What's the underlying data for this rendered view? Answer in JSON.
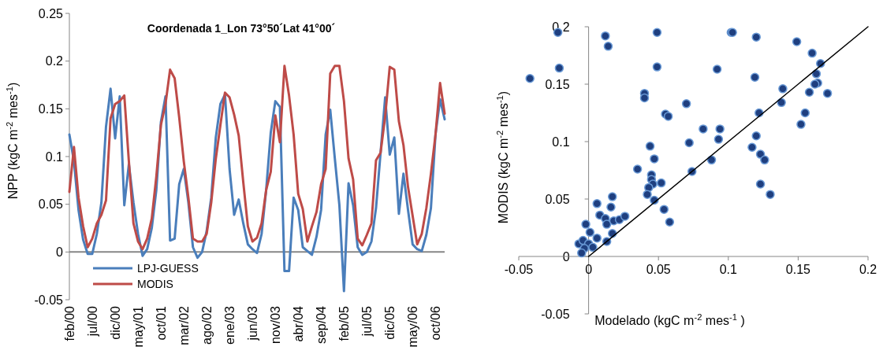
{
  "chart_data": [
    {
      "type": "line",
      "title": "Coordenada 1_Lon 73°50´Lat 41°00´",
      "ylabel": "NPP (kgC m$^{-2}$ mes$^{-1}$)",
      "categories": [
        "feb/00",
        null,
        null,
        null,
        null,
        "jul/00",
        null,
        null,
        null,
        null,
        "dic/00",
        null,
        null,
        null,
        null,
        "may/01",
        null,
        null,
        null,
        null,
        "oct/01",
        null,
        null,
        null,
        null,
        "mar/02",
        null,
        null,
        null,
        null,
        "ago/02",
        null,
        null,
        null,
        null,
        "ene/03",
        null,
        null,
        null,
        null,
        "jun/03",
        null,
        null,
        null,
        null,
        "nov/03",
        null,
        null,
        null,
        null,
        "abr/04",
        null,
        null,
        null,
        null,
        "sep/04",
        null,
        null,
        null,
        null,
        "feb/05",
        null,
        null,
        null,
        null,
        "jul/05",
        null,
        null,
        null,
        null,
        "dic/05",
        null,
        null,
        null,
        null,
        "may/06",
        null,
        null,
        null,
        null,
        "oct/06",
        null,
        null
      ],
      "series": [
        {
          "name": "LPJ-GUESS",
          "color": "#4a7ebb",
          "values": [
            0.123,
            0.095,
            0.044,
            0.013,
            -0.002,
            -0.002,
            0.019,
            0.052,
            0.131,
            0.171,
            0.119,
            0.163,
            0.049,
            0.092,
            0.052,
            0.019,
            -0.004,
            0.003,
            0.025,
            0.065,
            0.136,
            0.163,
            0.012,
            0.014,
            0.071,
            0.087,
            0.052,
            0.005,
            -0.006,
            0,
            0.022,
            0.057,
            0.12,
            0.155,
            0.165,
            0.087,
            0.039,
            0.055,
            0.03,
            0.008,
            0.003,
            -0.001,
            0.019,
            0.065,
            0.125,
            0.158,
            0.152,
            -0.02,
            -0.02,
            0.057,
            0.044,
            0.005,
            0.001,
            -0.003,
            0.016,
            0.044,
            0.123,
            0.149,
            0.098,
            0.049,
            -0.041,
            0.072,
            0.049,
            0.005,
            -0.003,
            0,
            0.011,
            0.046,
            0.104,
            0.162,
            0.102,
            0.12,
            0.04,
            0.082,
            0.044,
            0.008,
            0.003,
            0.001,
            0.018,
            0.046,
            0.123,
            0.16,
            0.139
          ]
        },
        {
          "name": "MODIS",
          "color": "#be4b48",
          "values": [
            0.063,
            0.11,
            0.057,
            0.027,
            0.005,
            0.014,
            0.03,
            0.039,
            0.054,
            0.14,
            0.155,
            0.158,
            0.164,
            0.095,
            0.03,
            0.011,
            0.003,
            0.014,
            0.035,
            0.079,
            0.133,
            0.155,
            0.191,
            0.182,
            0.141,
            0.095,
            0.057,
            0.014,
            0.011,
            0.011,
            0.019,
            0.052,
            0.098,
            0.133,
            0.167,
            0.162,
            0.144,
            0.122,
            0.073,
            0.027,
            0.011,
            0.015,
            0.03,
            0.065,
            0.084,
            0.143,
            0.115,
            0.195,
            0.164,
            0.123,
            0.061,
            0.045,
            0.011,
            0.027,
            0.042,
            0.071,
            0.087,
            0.187,
            0.195,
            0.195,
            0.158,
            0.098,
            0.076,
            0.014,
            0.007,
            0.018,
            0.03,
            0.096,
            0.104,
            0.142,
            0.194,
            0.191,
            0.137,
            0.112,
            0.068,
            0.038,
            0.008,
            0.019,
            0.046,
            0.082,
            0.123,
            0.177,
            0.145
          ]
        }
      ],
      "ylim": [
        -0.05,
        0.25
      ],
      "yticks": [
        -0.05,
        0,
        0.05,
        0.1,
        0.15,
        0.2,
        0.25
      ],
      "legend": "bottom left",
      "line_style": "solid"
    },
    {
      "type": "scatter",
      "xlabel": "Modelado (kgC m$^{-2}$ mes$^{-1}$  )",
      "ylabel": "MODIS (kgC m$^{-2}$ mes$^{-1}$)",
      "xlim": [
        -0.05,
        0.2
      ],
      "xticks": [
        -0.05,
        0,
        0.05,
        0.1,
        0.15,
        0.2
      ],
      "ylim": [
        -0.05,
        0.2
      ],
      "yticks": [
        -0.05,
        0,
        0.05,
        0.1,
        0.15,
        0.2
      ],
      "series": [
        {
          "color": "#1f3f7f",
          "marker": "circle",
          "x": [
            -0.042,
            -0.022,
            -0.021,
            0.012,
            0.014,
            0.049,
            0.049,
            0.04,
            0.04,
            0.055,
            0.057,
            0.07,
            0.044,
            0.047,
            0.035,
            0.045,
            0.045,
            0.046,
            0.052,
            0.043,
            0.042,
            0.047,
            0.054,
            0.058,
            0.006,
            0.008,
            0.016,
            0.017,
            0.012,
            0.013,
            0.018,
            0.022,
            0.026,
            -0.002,
            0.001,
            0.006,
            -0.007,
            -0.004,
            0,
            0.003,
            -0.003,
            -0.005,
            0.013,
            0.017,
            0.082,
            0.072,
            0.074,
            0.088,
            0.092,
            0.093,
            0.094,
            0.102,
            0.103,
            0.12,
            0.119,
            0.122,
            0.12,
            0.117,
            0.123,
            0.126,
            0.123,
            0.13,
            0.139,
            0.138,
            0.149,
            0.16,
            0.166,
            0.163,
            0.164,
            0.162,
            0.158,
            0.171,
            0.155,
            0.152
          ],
          "values": [
            0.155,
            0.195,
            0.164,
            0.192,
            0.183,
            0.195,
            0.165,
            0.142,
            0.138,
            0.124,
            0.122,
            0.133,
            0.096,
            0.085,
            0.076,
            0.071,
            0.067,
            0.063,
            0.064,
            0.06,
            0.054,
            0.049,
            0.041,
            0.03,
            0.046,
            0.036,
            0.043,
            0.052,
            0.033,
            0.028,
            0.031,
            0.032,
            0.035,
            0.028,
            0.021,
            0.016,
            0.011,
            0.014,
            0.011,
            0.008,
            0.007,
            0.003,
            0.013,
            0.02,
            0.111,
            0.099,
            0.074,
            0.084,
            0.163,
            0.102,
            0.111,
            0.195,
            0.195,
            0.191,
            0.156,
            0.125,
            0.105,
            0.095,
            0.089,
            0.084,
            0.063,
            0.054,
            0.146,
            0.134,
            0.187,
            0.177,
            0.168,
            0.159,
            0.151,
            0.15,
            0.143,
            0.142,
            0.125,
            0.115
          ]
        },
        {
          "type": "line",
          "color": "#000000",
          "x": [
            0,
            0.2
          ],
          "values": [
            0,
            0.2
          ]
        }
      ]
    }
  ]
}
